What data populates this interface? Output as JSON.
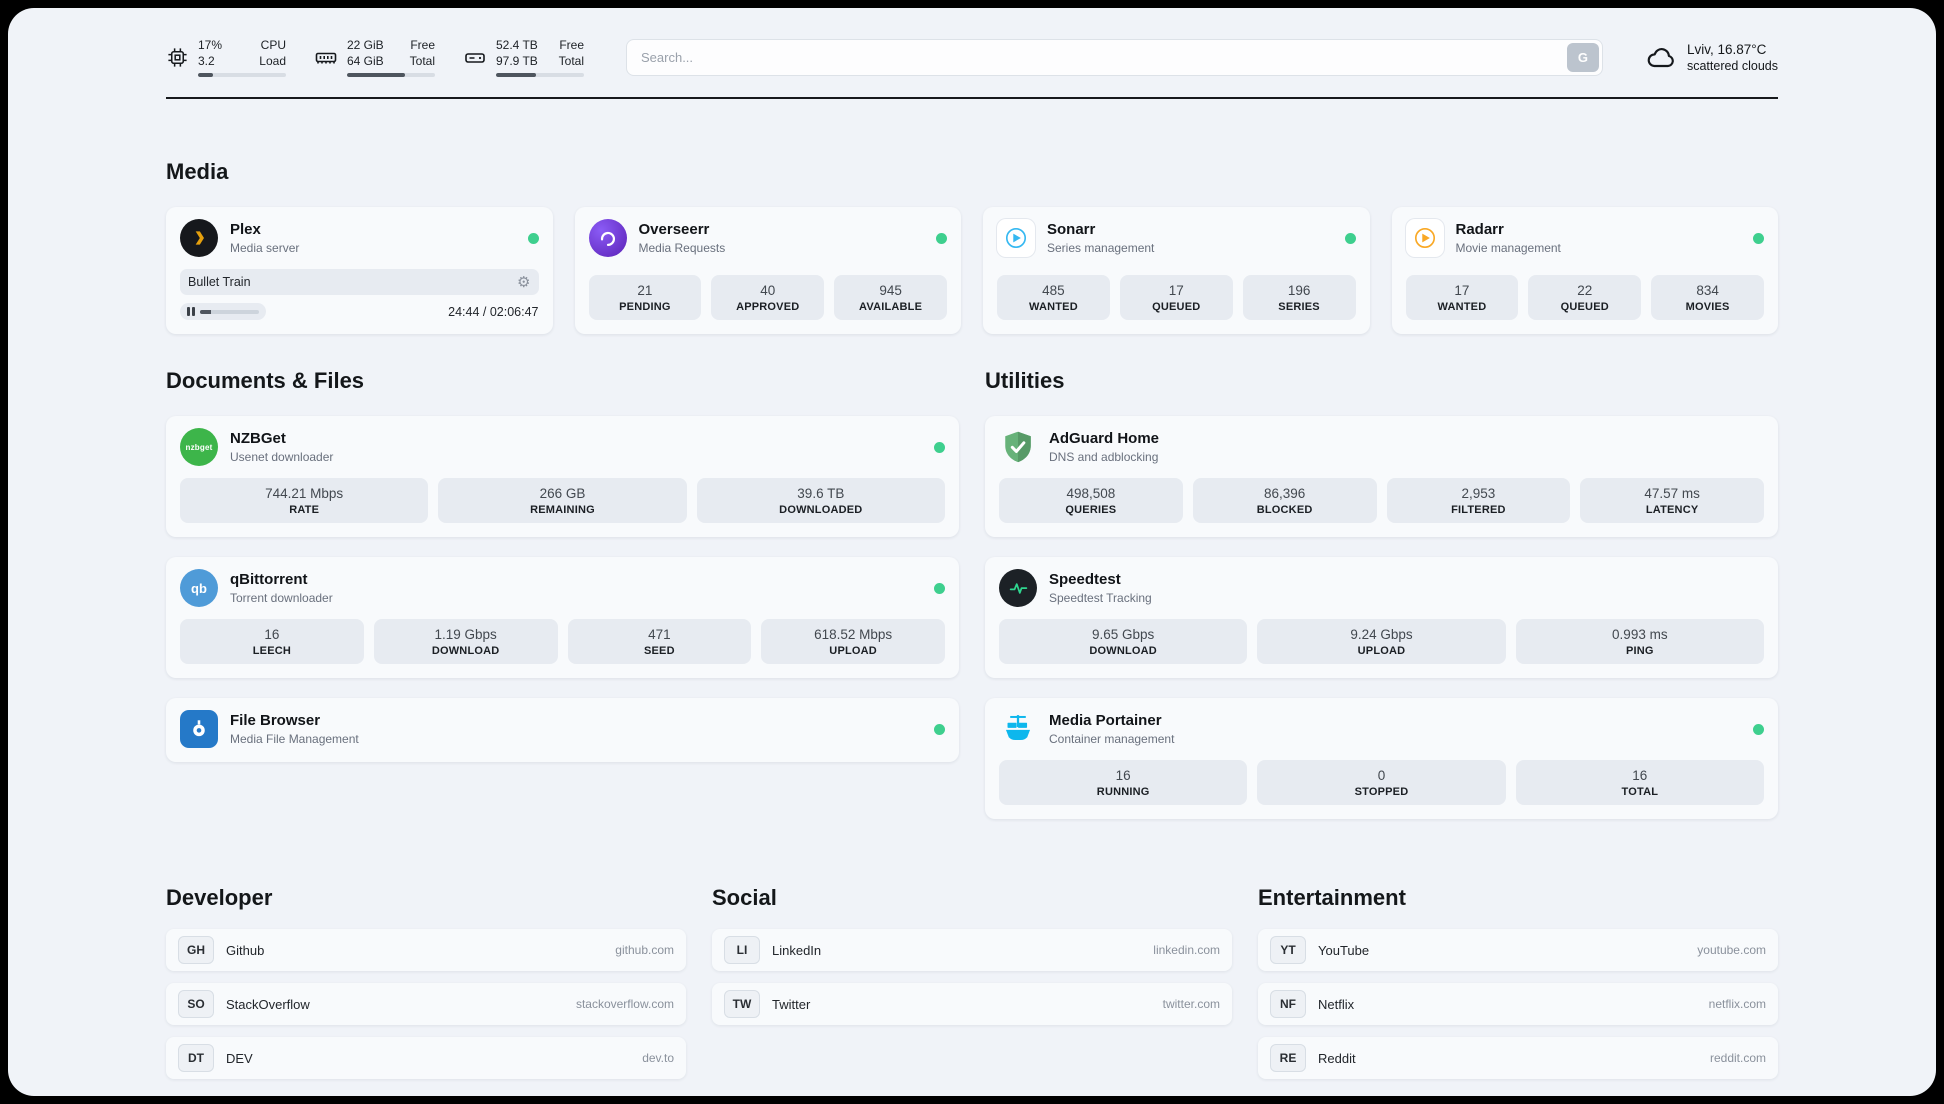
{
  "header": {
    "cpu": {
      "usage": "17%",
      "load": "3.2",
      "label_top": "CPU",
      "label_bottom": "Load",
      "bar_percent": 17
    },
    "memory": {
      "free": "22 GiB",
      "total": "64 GiB",
      "label_top": "Free",
      "label_bottom": "Total",
      "bar_percent": 66
    },
    "disk": {
      "free": "52.4 TB",
      "total": "97.9 TB",
      "label_top": "Free",
      "label_bottom": "Total",
      "bar_percent": 46
    },
    "search": {
      "placeholder": "Search...",
      "button_label": "G"
    },
    "weather": {
      "location": "Lviv, 16.87°C",
      "condition": "scattered clouds"
    }
  },
  "media": {
    "title": "Media",
    "plex": {
      "name": "Plex",
      "subtitle": "Media server",
      "now_playing": "Bullet Train",
      "time": "24:44 / 02:06:47",
      "progress_percent": 19
    },
    "overseerr": {
      "name": "Overseerr",
      "subtitle": "Media Requests",
      "stats": [
        {
          "value": "21",
          "label": "PENDING"
        },
        {
          "value": "40",
          "label": "APPROVED"
        },
        {
          "value": "945",
          "label": "AVAILABLE"
        }
      ]
    },
    "sonarr": {
      "name": "Sonarr",
      "subtitle": "Series management",
      "stats": [
        {
          "value": "485",
          "label": "WANTED"
        },
        {
          "value": "17",
          "label": "QUEUED"
        },
        {
          "value": "196",
          "label": "SERIES"
        }
      ]
    },
    "radarr": {
      "name": "Radarr",
      "subtitle": "Movie management",
      "stats": [
        {
          "value": "17",
          "label": "WANTED"
        },
        {
          "value": "22",
          "label": "QUEUED"
        },
        {
          "value": "834",
          "label": "MOVIES"
        }
      ]
    }
  },
  "documents": {
    "title": "Documents & Files",
    "nzbget": {
      "name": "NZBGet",
      "subtitle": "Usenet downloader",
      "icon_text": "nzbget",
      "stats": [
        {
          "value": "744.21 Mbps",
          "label": "RATE"
        },
        {
          "value": "266 GB",
          "label": "REMAINING"
        },
        {
          "value": "39.6 TB",
          "label": "DOWNLOADED"
        }
      ]
    },
    "qbittorrent": {
      "name": "qBittorrent",
      "subtitle": "Torrent downloader",
      "icon_text": "qb",
      "stats": [
        {
          "value": "16",
          "label": "LEECH"
        },
        {
          "value": "1.19 Gbps",
          "label": "DOWNLOAD"
        },
        {
          "value": "471",
          "label": "SEED"
        },
        {
          "value": "618.52 Mbps",
          "label": "UPLOAD"
        }
      ]
    },
    "filebrowser": {
      "name": "File Browser",
      "subtitle": "Media File Management"
    }
  },
  "utilities": {
    "title": "Utilities",
    "adguard": {
      "name": "AdGuard Home",
      "subtitle": "DNS and adblocking",
      "stats": [
        {
          "value": "498,508",
          "label": "QUERIES"
        },
        {
          "value": "86,396",
          "label": "BLOCKED"
        },
        {
          "value": "2,953",
          "label": "FILTERED"
        },
        {
          "value": "47.57 ms",
          "label": "LATENCY"
        }
      ]
    },
    "speedtest": {
      "name": "Speedtest",
      "subtitle": "Speedtest Tracking",
      "stats": [
        {
          "value": "9.65 Gbps",
          "label": "DOWNLOAD"
        },
        {
          "value": "9.24 Gbps",
          "label": "UPLOAD"
        },
        {
          "value": "0.993 ms",
          "label": "PING"
        }
      ]
    },
    "portainer": {
      "name": "Media Portainer",
      "subtitle": "Container management",
      "stats": [
        {
          "value": "16",
          "label": "RUNNING"
        },
        {
          "value": "0",
          "label": "STOPPED"
        },
        {
          "value": "16",
          "label": "TOTAL"
        }
      ]
    }
  },
  "bookmarks": {
    "developer": {
      "title": "Developer",
      "links": [
        {
          "abbr": "GH",
          "name": "Github",
          "url": "github.com"
        },
        {
          "abbr": "SO",
          "name": "StackOverflow",
          "url": "stackoverflow.com"
        },
        {
          "abbr": "DT",
          "name": "DEV",
          "url": "dev.to"
        }
      ]
    },
    "social": {
      "title": "Social",
      "links": [
        {
          "abbr": "LI",
          "name": "LinkedIn",
          "url": "linkedin.com"
        },
        {
          "abbr": "TW",
          "name": "Twitter",
          "url": "twitter.com"
        }
      ]
    },
    "entertainment": {
      "title": "Entertainment",
      "links": [
        {
          "abbr": "YT",
          "name": "YouTube",
          "url": "youtube.com"
        },
        {
          "abbr": "NF",
          "name": "Netflix",
          "url": "netflix.com"
        },
        {
          "abbr": "RE",
          "name": "Reddit",
          "url": "reddit.com"
        }
      ]
    }
  },
  "colors": {
    "status_online": "#3ecf8e",
    "plex_gold": "#e5a00d",
    "portainer_blue": "#0db7ed",
    "adguard_green": "#67b279"
  }
}
